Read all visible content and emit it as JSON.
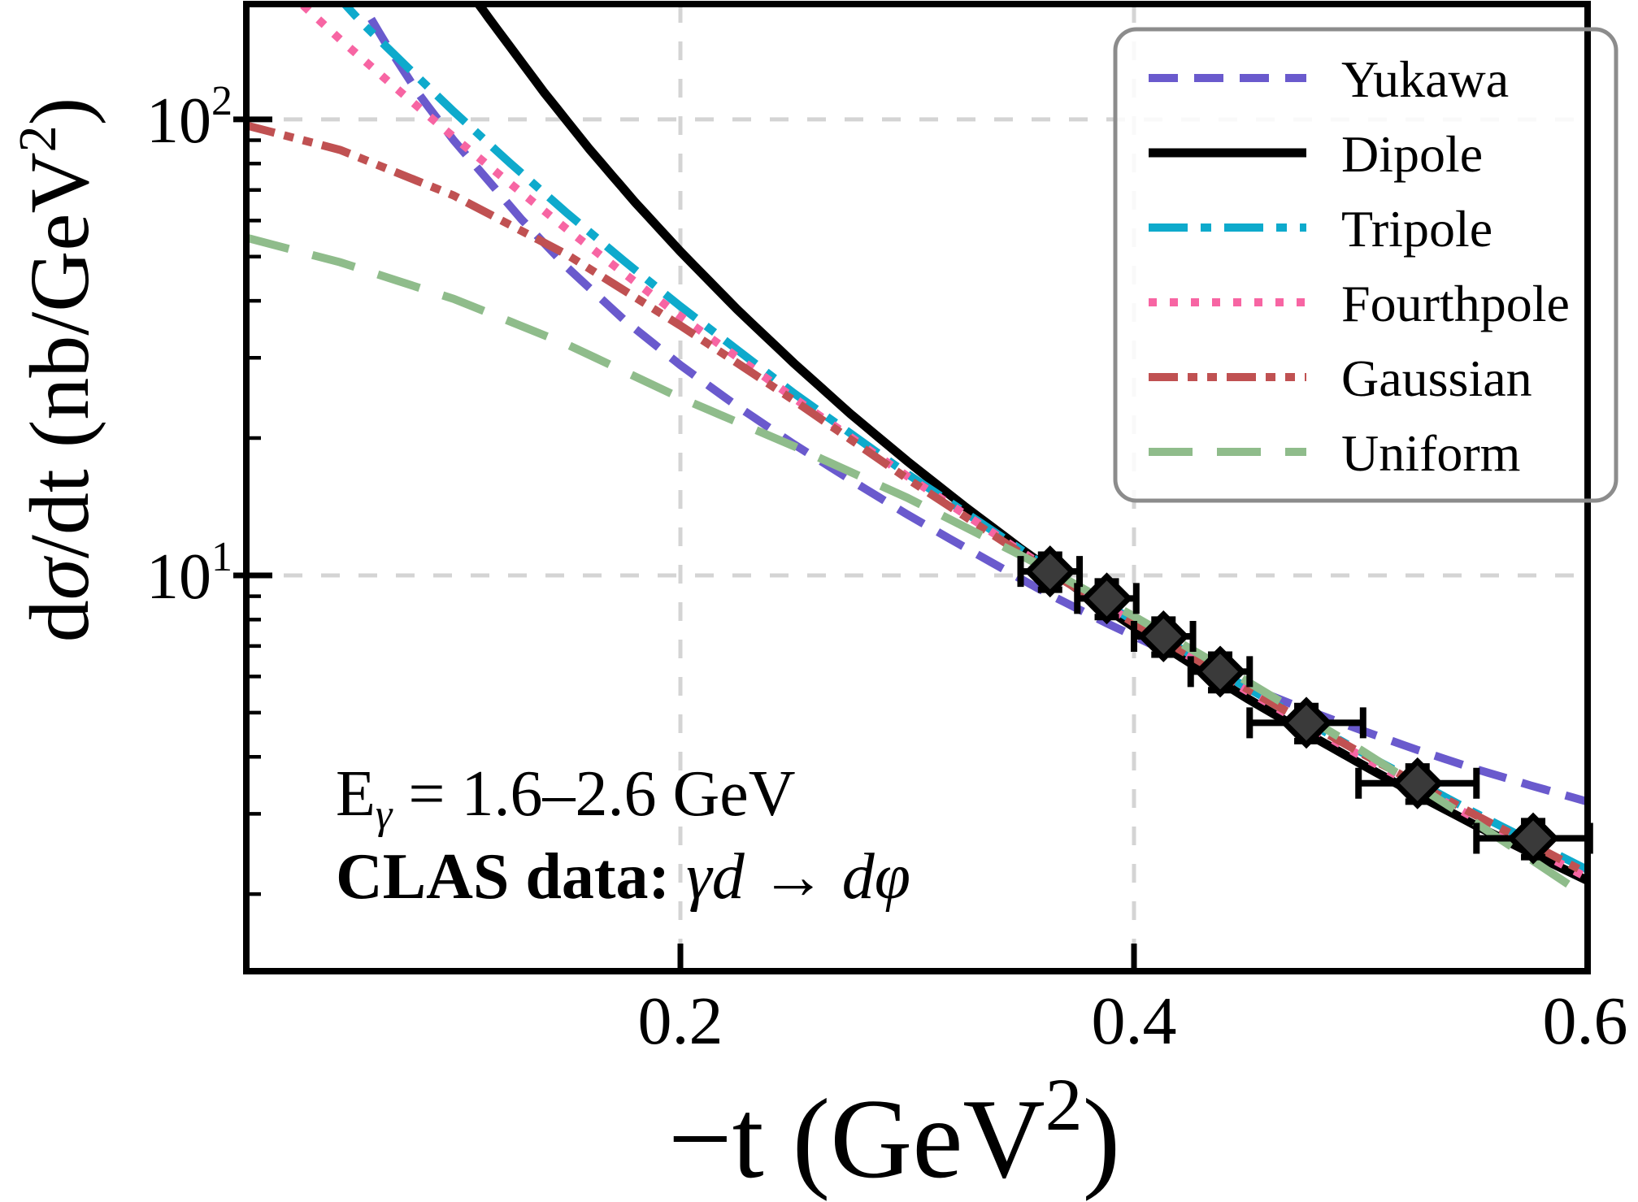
{
  "chart_data": {
    "type": "line",
    "title": "",
    "xlabel_parts": {
      "pre": "−t (GeV",
      "sup": "2",
      "post": ")"
    },
    "ylabel_parts": {
      "pre": "d",
      "italic": "σ",
      "mid": "/dt (nb/GeV",
      "sup": "2",
      "post": ")"
    },
    "x_axis": {
      "min": 0.0086,
      "max": 0.6,
      "scale": "linear",
      "ticks": [
        0.2,
        0.4,
        0.6
      ],
      "tick_labels": [
        "0.2",
        "0.4",
        "0.6"
      ]
    },
    "y_axis": {
      "min": 1.355,
      "max": 179,
      "scale": "log",
      "major_ticks": [
        10,
        100
      ],
      "tick_labels": [
        {
          "value": 100,
          "base": "10",
          "exp": "2"
        },
        {
          "value": 10,
          "base": "10",
          "exp": "1"
        }
      ],
      "minor_ticks": [
        2,
        3,
        4,
        5,
        6,
        7,
        8,
        9,
        20,
        30,
        40,
        50,
        60,
        70,
        80,
        90
      ]
    },
    "grid": {
      "color": "#D4D4D4",
      "dash": "23 23",
      "width": 5,
      "x_values": [
        0.2,
        0.4
      ],
      "y_values": [
        10,
        100
      ]
    },
    "series": [
      {
        "name": "Yukawa",
        "color": "#6A5ACD",
        "dash": "36 20",
        "width": 10,
        "points": [
          [
            0.052,
            200
          ],
          [
            0.058,
            185
          ],
          [
            0.07,
            147
          ],
          [
            0.085,
            113
          ],
          [
            0.1,
            90
          ],
          [
            0.13,
            60.3
          ],
          [
            0.15,
            47.4
          ],
          [
            0.175,
            36.4
          ],
          [
            0.2,
            28.9
          ],
          [
            0.225,
            23.5
          ],
          [
            0.25,
            19.4
          ],
          [
            0.275,
            16.2
          ],
          [
            0.3,
            13.6
          ],
          [
            0.325,
            11.55
          ],
          [
            0.35,
            9.83
          ],
          [
            0.363,
            9.06
          ],
          [
            0.388,
            7.85
          ],
          [
            0.413,
            6.86
          ],
          [
            0.44,
            5.98
          ],
          [
            0.475,
            5.09
          ],
          [
            0.5,
            4.58
          ],
          [
            0.525,
            4.14
          ],
          [
            0.55,
            3.77
          ],
          [
            0.575,
            3.46
          ],
          [
            0.6,
            3.19
          ]
        ]
      },
      {
        "name": "Dipole",
        "color": "#000000",
        "dash": "",
        "width": 11,
        "points": [
          [
            0.105,
            199
          ],
          [
            0.111,
            179
          ],
          [
            0.12,
            155.6
          ],
          [
            0.14,
            114.4
          ],
          [
            0.16,
            85.9
          ],
          [
            0.18,
            65.8
          ],
          [
            0.2,
            51.3
          ],
          [
            0.225,
            38.3
          ],
          [
            0.25,
            29.2
          ],
          [
            0.275,
            22.6
          ],
          [
            0.3,
            17.8
          ],
          [
            0.325,
            14.2
          ],
          [
            0.35,
            11.45
          ],
          [
            0.375,
            9.34
          ],
          [
            0.4,
            7.7
          ],
          [
            0.425,
            6.41
          ],
          [
            0.45,
            5.37
          ],
          [
            0.475,
            4.54
          ],
          [
            0.5,
            3.86
          ],
          [
            0.525,
            3.3
          ],
          [
            0.55,
            2.84
          ],
          [
            0.575,
            2.46
          ],
          [
            0.6,
            2.14
          ]
        ]
      },
      {
        "name": "Tripole",
        "color": "#0EAACC",
        "dash": "48 16 13 16",
        "width": 10,
        "points": [
          [
            0.045,
            192
          ],
          [
            0.052,
            179
          ],
          [
            0.06,
            162
          ],
          [
            0.08,
            129.6
          ],
          [
            0.1,
            104.1
          ],
          [
            0.125,
            80.1
          ],
          [
            0.15,
            62.3
          ],
          [
            0.175,
            49.0
          ],
          [
            0.2,
            38.9
          ],
          [
            0.25,
            25.1
          ],
          [
            0.3,
            16.7
          ],
          [
            0.35,
            11.4
          ],
          [
            0.363,
            10.3
          ],
          [
            0.4,
            7.94
          ],
          [
            0.45,
            5.66
          ],
          [
            0.5,
            4.1
          ],
          [
            0.55,
            3.02
          ],
          [
            0.6,
            2.26
          ]
        ]
      },
      {
        "name": "Fourthpole",
        "color": "#F765A3",
        "dash": "10 16",
        "width": 10,
        "points": [
          [
            0.027,
            192
          ],
          [
            0.033,
            179
          ],
          [
            0.05,
            149.7
          ],
          [
            0.075,
            116.6
          ],
          [
            0.1,
            91.5
          ],
          [
            0.125,
            72.3
          ],
          [
            0.15,
            57.4
          ],
          [
            0.175,
            46.0
          ],
          [
            0.2,
            37.0
          ],
          [
            0.25,
            24.5
          ],
          [
            0.3,
            16.5
          ],
          [
            0.35,
            11.3
          ],
          [
            0.363,
            10.28
          ],
          [
            0.4,
            7.86
          ],
          [
            0.45,
            5.57
          ],
          [
            0.5,
            4.02
          ],
          [
            0.55,
            2.94
          ],
          [
            0.6,
            2.17
          ]
        ]
      },
      {
        "name": "Gaussian",
        "color": "#C05152",
        "dash": "36 12 12 12 12 12",
        "width": 10,
        "points": [
          [
            0.0086,
            97
          ],
          [
            0.05,
            85.7
          ],
          [
            0.1,
            68.1
          ],
          [
            0.15,
            50.5
          ],
          [
            0.2,
            35.3
          ],
          [
            0.25,
            24.2
          ],
          [
            0.3,
            16.3
          ],
          [
            0.35,
            11.2
          ],
          [
            0.363,
            10.15
          ],
          [
            0.4,
            7.86
          ],
          [
            0.45,
            5.63
          ],
          [
            0.5,
            4.08
          ],
          [
            0.55,
            2.99
          ],
          [
            0.6,
            2.22
          ]
        ]
      },
      {
        "name": "Uniform",
        "color": "#8FBC8B",
        "dash": "54 30",
        "width": 10,
        "points": [
          [
            0.0086,
            55
          ],
          [
            0.05,
            48.6
          ],
          [
            0.1,
            40.4
          ],
          [
            0.15,
            32.1
          ],
          [
            0.2,
            24.5
          ],
          [
            0.25,
            19.2
          ],
          [
            0.3,
            14.8
          ],
          [
            0.35,
            11.07
          ],
          [
            0.363,
            10.24
          ],
          [
            0.4,
            8.13
          ],
          [
            0.45,
            5.85
          ],
          [
            0.5,
            4.14
          ],
          [
            0.55,
            2.88
          ],
          [
            0.6,
            1.97
          ]
        ]
      }
    ],
    "data_series": {
      "name": "CLAS data",
      "marker": "diamond",
      "fill": "#3A3A3A",
      "edge": "#000000",
      "points": [
        {
          "x": 0.363,
          "y": 10.2,
          "xerr": 0.013,
          "yerr": 0.9
        },
        {
          "x": 0.388,
          "y": 8.9,
          "xerr": 0.013,
          "yerr": 0.8
        },
        {
          "x": 0.413,
          "y": 7.35,
          "xerr": 0.013,
          "yerr": 0.65
        },
        {
          "x": 0.438,
          "y": 6.15,
          "xerr": 0.013,
          "yerr": 0.55
        },
        {
          "x": 0.476,
          "y": 4.75,
          "xerr": 0.025,
          "yerr": 0.42
        },
        {
          "x": 0.525,
          "y": 3.5,
          "xerr": 0.026,
          "yerr": 0.31
        },
        {
          "x": 0.576,
          "y": 2.65,
          "xerr": 0.025,
          "yerr": 0.24
        }
      ]
    },
    "legend": {
      "border_color": "#8C8C8C",
      "bg_color": "#FFFFFF",
      "position": "top-right"
    },
    "annotations": {
      "energy": {
        "pre": "E",
        "sub": "γ",
        "post": " = 1.6–2.6 GeV"
      },
      "clas": {
        "bold": "CLAS data:",
        "italic": " γd → dφ"
      }
    }
  }
}
